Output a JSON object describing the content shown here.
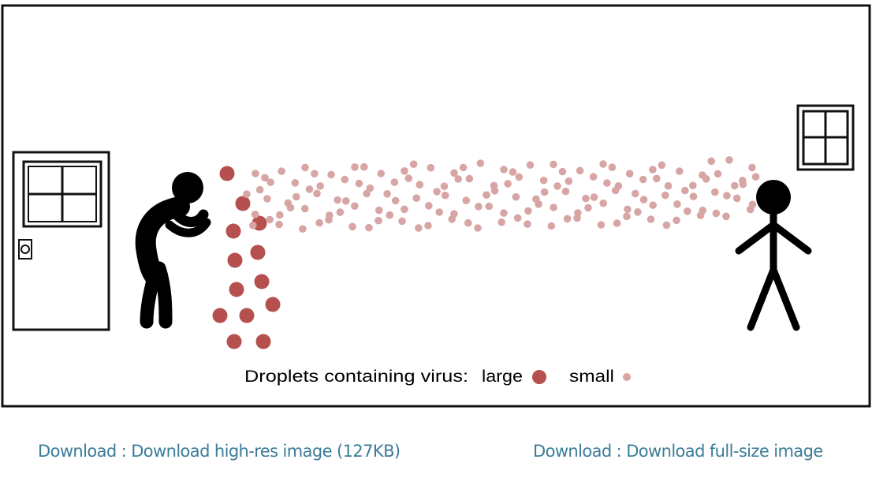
{
  "figure": {
    "legend": {
      "label": "Droplets containing virus:",
      "large": "large",
      "small": "small"
    }
  },
  "links": [
    "Download : Download high-res image (127KB)",
    "Download : Download full-size image"
  ]
}
